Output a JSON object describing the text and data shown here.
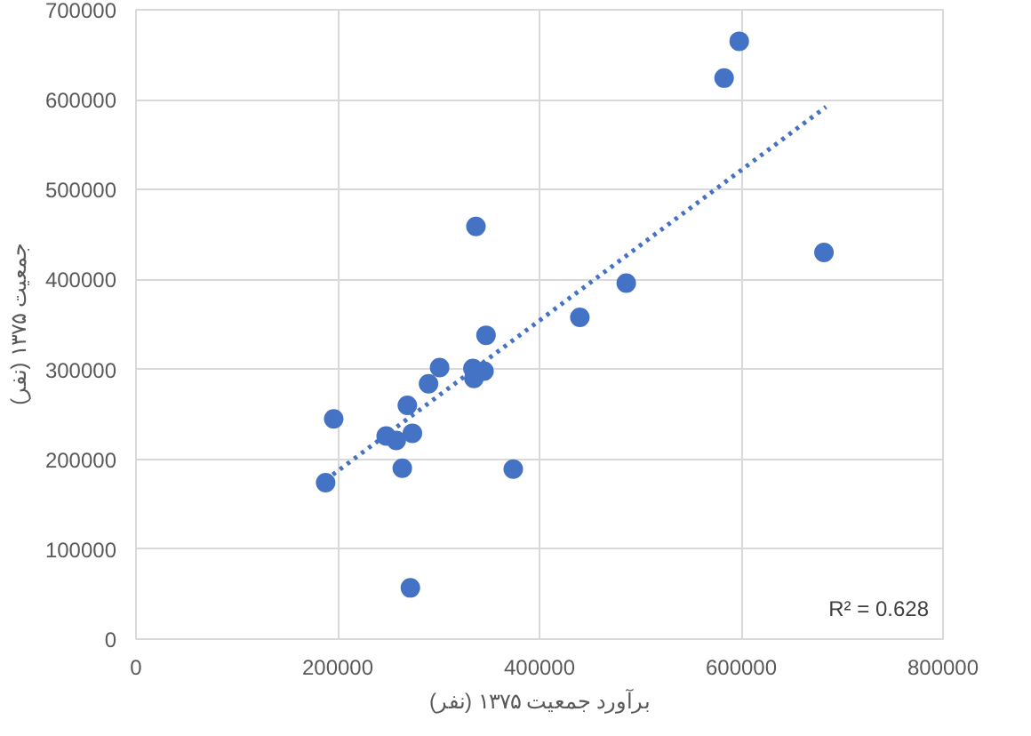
{
  "chart_data": {
    "type": "scatter",
    "xlabel": "برآورد جمعیت ۱۳۷۵ (نفر)",
    "ylabel": "جمعیت ۱۳۷۵ (نفر)",
    "xlim": [
      0,
      800000
    ],
    "xticks": [
      0,
      200000,
      400000,
      600000,
      800000
    ],
    "ylim": [
      0,
      700000
    ],
    "yticks": [
      0,
      100000,
      200000,
      300000,
      400000,
      500000,
      600000,
      700000
    ],
    "grid": true,
    "marker": "circle",
    "series": [
      {
        "color": "#4472c4",
        "x": [
          188000,
          196000,
          248000,
          258000,
          274000,
          264000,
          269000,
          290000,
          301000,
          334000,
          335000,
          345000,
          347000,
          374000,
          272000,
          337000,
          440000,
          486000,
          583000,
          598000,
          682000
        ],
        "values": [
          174000,
          245000,
          226000,
          221000,
          229000,
          190000,
          260000,
          284000,
          302000,
          301000,
          290000,
          298000,
          338000,
          189000,
          57000,
          459000,
          358000,
          396000,
          624000,
          665000,
          430000
        ]
      },
      {
        "type": "line",
        "color": "#4472c4",
        "line_style": "dotted",
        "marker": "none",
        "x": [
          188000,
          684000
        ],
        "values": [
          177000,
          592000
        ]
      }
    ],
    "annotations": [
      "R² = 0.628"
    ]
  }
}
